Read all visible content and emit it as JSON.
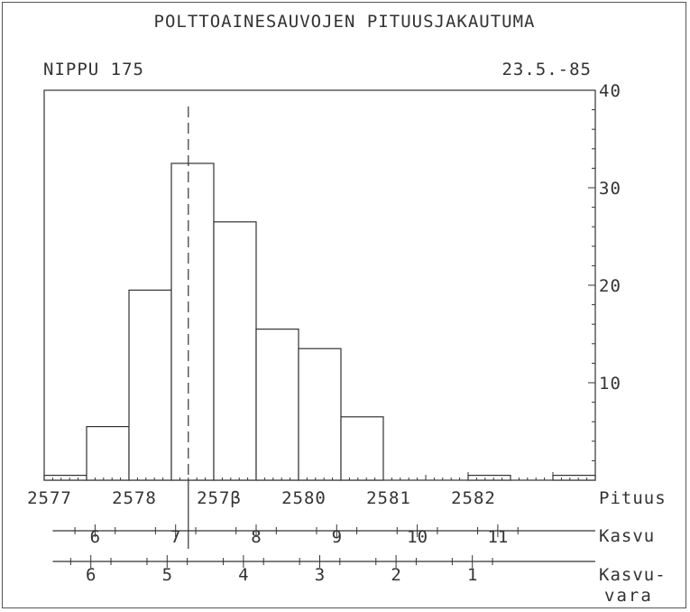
{
  "chart_data": {
    "type": "bar",
    "title": "POLTTOAINESAUVOJEN PITUUSJAKAUTUMA",
    "subtitle_left": "NIPPU 175",
    "subtitle_right": "23.5.-85",
    "x_label": "Pituus",
    "y_ticks": [
      10,
      20,
      30,
      40
    ],
    "ylim": [
      0,
      40
    ],
    "xlim": [
      2577,
      2583.5
    ],
    "bar_width": 0.5,
    "bars": [
      {
        "x": 2577.0,
        "value": 0.5
      },
      {
        "x": 2577.5,
        "value": 5.5
      },
      {
        "x": 2578.0,
        "value": 19.5
      },
      {
        "x": 2578.5,
        "value": 32.5
      },
      {
        "x": 2579.0,
        "value": 26.5
      },
      {
        "x": 2579.5,
        "value": 15.5
      },
      {
        "x": 2580.0,
        "value": 13.5
      },
      {
        "x": 2580.5,
        "value": 6.5
      },
      {
        "x": 2581.0,
        "value": 0
      },
      {
        "x": 2581.5,
        "value": 0
      },
      {
        "x": 2582.0,
        "value": 0.5
      },
      {
        "x": 2582.5,
        "value": 0
      },
      {
        "x": 2583.0,
        "value": 0.5
      }
    ],
    "x_ticks": [
      {
        "value": 2577,
        "label": "2577"
      },
      {
        "value": 2578,
        "label": "2578"
      },
      {
        "value": 2579,
        "label": "257β"
      },
      {
        "value": 2580,
        "label": "2580"
      },
      {
        "value": 2581,
        "label": "2581"
      },
      {
        "value": 2582,
        "label": "2582"
      }
    ],
    "dashed_line_x": 2578.7,
    "kasvu_scale": {
      "label": "Kasvu",
      "ticks": [
        {
          "x": 2577.6,
          "label": "6"
        },
        {
          "x": 2578.55,
          "label": "7"
        },
        {
          "x": 2579.5,
          "label": "8"
        },
        {
          "x": 2580.45,
          "label": "9"
        },
        {
          "x": 2581.4,
          "label": "10"
        },
        {
          "x": 2582.35,
          "label": "11"
        }
      ]
    },
    "kasvuvara_scale": {
      "label_line1": "Kasvu-",
      "label_line2": "vara",
      "ticks": [
        {
          "x": 2577.55,
          "label": "6"
        },
        {
          "x": 2578.45,
          "label": "5"
        },
        {
          "x": 2579.35,
          "label": "4"
        },
        {
          "x": 2580.25,
          "label": "3"
        },
        {
          "x": 2581.15,
          "label": "2"
        },
        {
          "x": 2582.05,
          "label": "1"
        }
      ]
    }
  }
}
